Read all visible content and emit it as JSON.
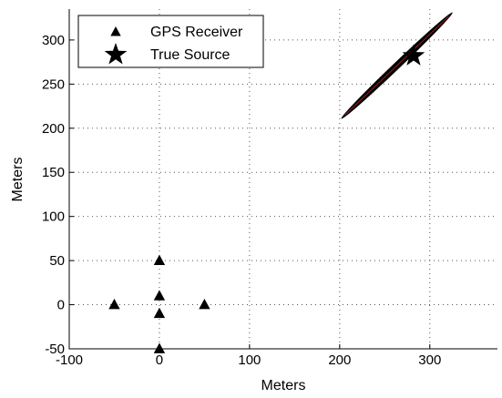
{
  "chart_data": {
    "type": "scatter",
    "title": "",
    "xlabel": "Meters",
    "ylabel": "Meters",
    "xlim": [
      -100,
      375
    ],
    "ylim": [
      -50,
      335
    ],
    "xticks": [
      -100,
      0,
      100,
      200,
      300
    ],
    "yticks": [
      -50,
      0,
      50,
      100,
      150,
      200,
      250,
      300
    ],
    "xtick_labels": [
      "-100",
      "0",
      "100",
      "200",
      "300"
    ],
    "ytick_labels": [
      "-50",
      "0",
      "50",
      "100",
      "150",
      "200",
      "250",
      "300"
    ],
    "grid": true,
    "legend_position": "top-left",
    "series": [
      {
        "name": "GPS Receiver",
        "marker": "triangle",
        "color": "#000000",
        "points": [
          [
            0,
            50
          ],
          [
            0,
            10
          ],
          [
            -50,
            0
          ],
          [
            50,
            0
          ],
          [
            0,
            -10
          ],
          [
            0,
            -50
          ]
        ]
      },
      {
        "name": "True Source",
        "marker": "star",
        "color": "#000000",
        "points": [
          [
            282,
            282
          ]
        ]
      }
    ],
    "uncertainty_region": {
      "shape": "ellipse",
      "line_start": [
        202,
        211
      ],
      "line_end": [
        325,
        331
      ],
      "minor_half_width": 3.5,
      "fill_color": "#000000",
      "accent_color": "#8b1a1a"
    }
  }
}
